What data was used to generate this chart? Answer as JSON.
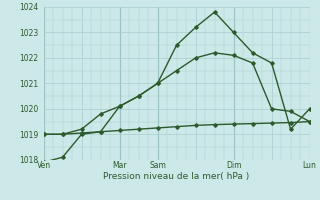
{
  "title": "",
  "xlabel": "Pression niveau de la mer( hPa )",
  "ylabel": "",
  "bg_color": "#cce8e8",
  "grid_color": "#aacece",
  "line_color": "#2d5a2d",
  "ylim": [
    1018,
    1024
  ],
  "yticks": [
    1018,
    1019,
    1020,
    1021,
    1022,
    1023,
    1024
  ],
  "xlim": [
    0,
    14
  ],
  "xtick_labels": [
    "Ven",
    "",
    "Mar",
    "Sam",
    "",
    "Dim",
    "",
    "Lun"
  ],
  "xtick_pos": [
    0,
    2,
    4,
    6,
    8,
    10,
    12,
    14
  ],
  "vlines_x": [
    0,
    4,
    6,
    10,
    14
  ],
  "series": [
    {
      "x": [
        0,
        1,
        2,
        3,
        4,
        5,
        6,
        7,
        8,
        9,
        10,
        11,
        12,
        13,
        14
      ],
      "y": [
        1019.0,
        1019.0,
        1019.05,
        1019.1,
        1019.15,
        1019.2,
        1019.25,
        1019.3,
        1019.35,
        1019.38,
        1019.4,
        1019.42,
        1019.44,
        1019.46,
        1019.5
      ],
      "style": "-",
      "marker": "D",
      "ms": 1.8,
      "lw": 1.0
    },
    {
      "x": [
        0,
        1,
        2,
        3,
        4,
        5,
        6,
        7,
        8,
        9,
        10,
        11,
        12,
        13,
        14
      ],
      "y": [
        1019.0,
        1019.0,
        1019.2,
        1019.8,
        1020.1,
        1020.5,
        1021.0,
        1021.5,
        1022.0,
        1022.2,
        1022.1,
        1021.8,
        1020.0,
        1019.9,
        1019.5
      ],
      "style": "-",
      "marker": "D",
      "ms": 1.8,
      "lw": 1.0
    },
    {
      "x": [
        0,
        1,
        2,
        3,
        4,
        5,
        6,
        7,
        8,
        9,
        10,
        11,
        12,
        13,
        14
      ],
      "y": [
        1017.9,
        1018.1,
        1019.0,
        1019.1,
        1020.1,
        1020.5,
        1021.0,
        1022.5,
        1023.2,
        1023.8,
        1023.0,
        1022.2,
        1021.8,
        1019.2,
        1020.0
      ],
      "style": "-",
      "marker": "D",
      "ms": 1.8,
      "lw": 1.0
    }
  ]
}
